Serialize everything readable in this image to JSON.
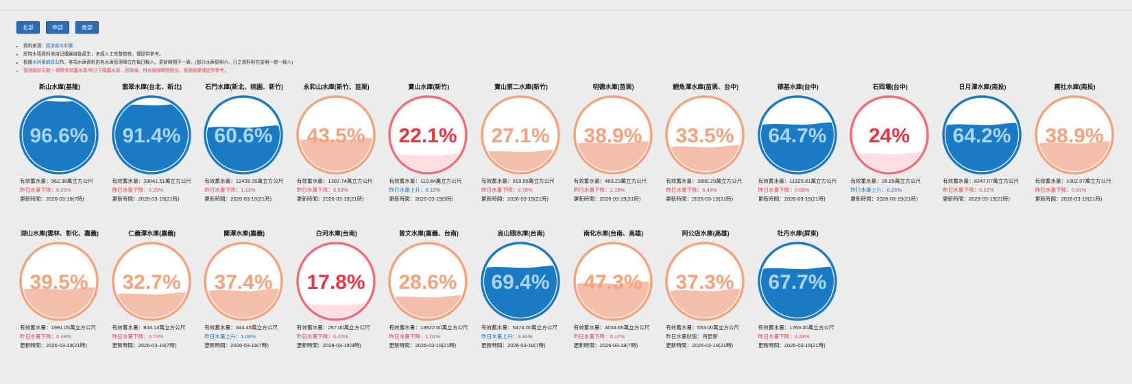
{
  "nav": {
    "buttons": [
      "北部",
      "中部",
      "南部"
    ]
  },
  "notes": {
    "source_prefix": "資料來源：",
    "source_link": "經濟部水利署",
    "line2": "即時水情資料係自記儀器自動產生，未經人工完整檢核，僅提供參考。",
    "line3_prefix": "根據",
    "line3_link": "水利署網頁",
    "line3_suffix": "公布，各項水庫資料由各水庫管理單位在每日輸入，更新時間不一致。(部分水庫星期六、日之資料則在星期一統一輸入)",
    "line4": "預測剩餘天數 = 即時有效蓄水量/昨日下降蓄水量。因降雨、用水量隨時間變化，預測結果僅提供參考。"
  },
  "labels": {
    "storage": "有效蓄水量：",
    "update": "更新時間："
  },
  "colors": {
    "high_stroke": "#1a7ac4",
    "high_fill": "#1a7ac4",
    "high_text": "#aad5f5",
    "mid_stroke": "#f7a17d",
    "mid_fill": "#f3bfaa",
    "mid_text": "#f7a17d",
    "low_stroke": "#f36d78",
    "low_fill": "#ffdde0",
    "low_text": "#ee3443"
  },
  "reservoirs": [
    {
      "name": "新山水庫(基隆)",
      "percent": "96.6%",
      "level": 0.966,
      "storage": "962.38萬立方公尺",
      "change": "昨日水量下降：0.05%",
      "trend": "down",
      "updated": "2026-03-19(7時)"
    },
    {
      "name": "翡翠水庫(台北、新北)",
      "percent": "91.4%",
      "level": 0.914,
      "storage": "33841.51萬立方公尺",
      "change": "昨日水量下降：0.23%",
      "trend": "down",
      "updated": "2026-03-19(21時)"
    },
    {
      "name": "石門水庫(新北、桃園、新竹)",
      "percent": "60.6%",
      "level": 0.606,
      "storage": "12439.35萬立方公尺",
      "change": "昨日水量下降：1.11%",
      "trend": "down",
      "updated": "2026-03-19(21時)"
    },
    {
      "name": "永和山水庫(新竹、苗栗)",
      "percent": "43.5%",
      "level": 0.435,
      "storage": "1302.74萬立方公尺",
      "change": "昨日水量下降：0.53%",
      "trend": "down",
      "updated": "2026-03-19(21時)"
    },
    {
      "name": "寶山水庫(新竹)",
      "percent": "22.1%",
      "level": 0.221,
      "storage": "110.84萬立方公尺",
      "change": "昨日水量上升：0.12%",
      "trend": "up",
      "updated": "2026-03-19(5時)"
    },
    {
      "name": "寶山第二水庫(新竹)",
      "percent": "27.1%",
      "level": 0.271,
      "storage": "919.56萬立方公尺",
      "change": "昨日水量下降：0.78%",
      "trend": "down",
      "updated": "2026-03-19(21時)"
    },
    {
      "name": "明德水庫(苗栗)",
      "percent": "38.9%",
      "level": 0.389,
      "storage": "483.23萬立方公尺",
      "change": "昨日水量下降：1.18%",
      "trend": "down",
      "updated": "2026-03-19(21時)"
    },
    {
      "name": "鯉魚潭水庫(苗栗、台中)",
      "percent": "33.5%",
      "level": 0.335,
      "storage": "3890.29萬立方公尺",
      "change": "昨日水量下降：0.49%",
      "trend": "down",
      "updated": "2026-03-19(21時)"
    },
    {
      "name": "德基水庫(台中)",
      "percent": "64.7%",
      "level": 0.647,
      "storage": "11925.81萬立方公尺",
      "change": "昨日水量下降：0.68%",
      "trend": "down",
      "updated": "2026-03-19(21時)"
    },
    {
      "name": "石岡壩(台中)",
      "percent": "24%",
      "level": 0.24,
      "storage": "28.85萬立方公尺",
      "change": "昨日水量上升：0.25%",
      "trend": "up",
      "updated": "2026-03-19(21時)"
    },
    {
      "name": "日月潭水庫(南投)",
      "percent": "64.2%",
      "level": 0.642,
      "storage": "8247.07萬立方公尺",
      "change": "昨日水量下降：0.22%",
      "trend": "down",
      "updated": "2026-03-19(21時)"
    },
    {
      "name": "霧社水庫(南投)",
      "percent": "38.9%",
      "level": 0.389,
      "storage": "1002.07萬立方公尺",
      "change": "昨日水量下降：0.81%",
      "trend": "down",
      "updated": "2026-03-19(21時)"
    },
    {
      "name": "湖山水庫(雲林、彰化、嘉義)",
      "percent": "39.5%",
      "level": 0.395,
      "storage": "1991.05萬立方公尺",
      "change": "昨日水量下降：0.28%",
      "trend": "down",
      "updated": "2026-03-19(21時)"
    },
    {
      "name": "仁義潭水庫(嘉義)",
      "percent": "32.7%",
      "level": 0.327,
      "storage": "804.14萬立方公尺",
      "change": "昨日水量下降：0.74%",
      "trend": "down",
      "updated": "2026-03-19(7時)"
    },
    {
      "name": "蘭潭水庫(嘉義)",
      "percent": "37.4%",
      "level": 0.374,
      "storage": "344.45萬立方公尺",
      "change": "昨日水量上升：1.08%",
      "trend": "up",
      "updated": "2026-03-19(7時)"
    },
    {
      "name": "白河水庫(台南)",
      "percent": "17.8%",
      "level": 0.178,
      "storage": "257.00萬立方公尺",
      "change": "昨日水量下降：0.20%",
      "trend": "down",
      "updated": "2026-03-19(8時)"
    },
    {
      "name": "曾文水庫(嘉義、台南)",
      "percent": "28.6%",
      "level": 0.286,
      "storage": "13922.00萬立方公尺",
      "change": "昨日水量下降：1.01%",
      "trend": "down",
      "updated": "2026-03-19(21時)"
    },
    {
      "name": "烏山頭水庫(台南)",
      "percent": "69.4%",
      "level": 0.694,
      "storage": "5474.00萬立方公尺",
      "change": "昨日水量上升：3.31%",
      "trend": "up",
      "updated": "2026-03-18(7時)"
    },
    {
      "name": "南化水庫(台南、高雄)",
      "percent": "47.3%",
      "level": 0.473,
      "storage": "4034.85萬立方公尺",
      "change": "昨日水量下降：0.17%",
      "trend": "down",
      "updated": "2026-03-19(7時)"
    },
    {
      "name": "阿公店水庫(高雄)",
      "percent": "37.3%",
      "level": 0.373,
      "storage": "553.00萬立方公尺",
      "change": "昨日水量狀態：待更新",
      "trend": "neutral",
      "updated": "2026-03-19(21時)"
    },
    {
      "name": "牡丹水庫(屏東)",
      "percent": "67.7%",
      "level": 0.677,
      "storage": "1763.00萬立方公尺",
      "change": "昨日水量下降：0.33%",
      "trend": "down",
      "updated": "2026-03-19(21時)"
    }
  ]
}
